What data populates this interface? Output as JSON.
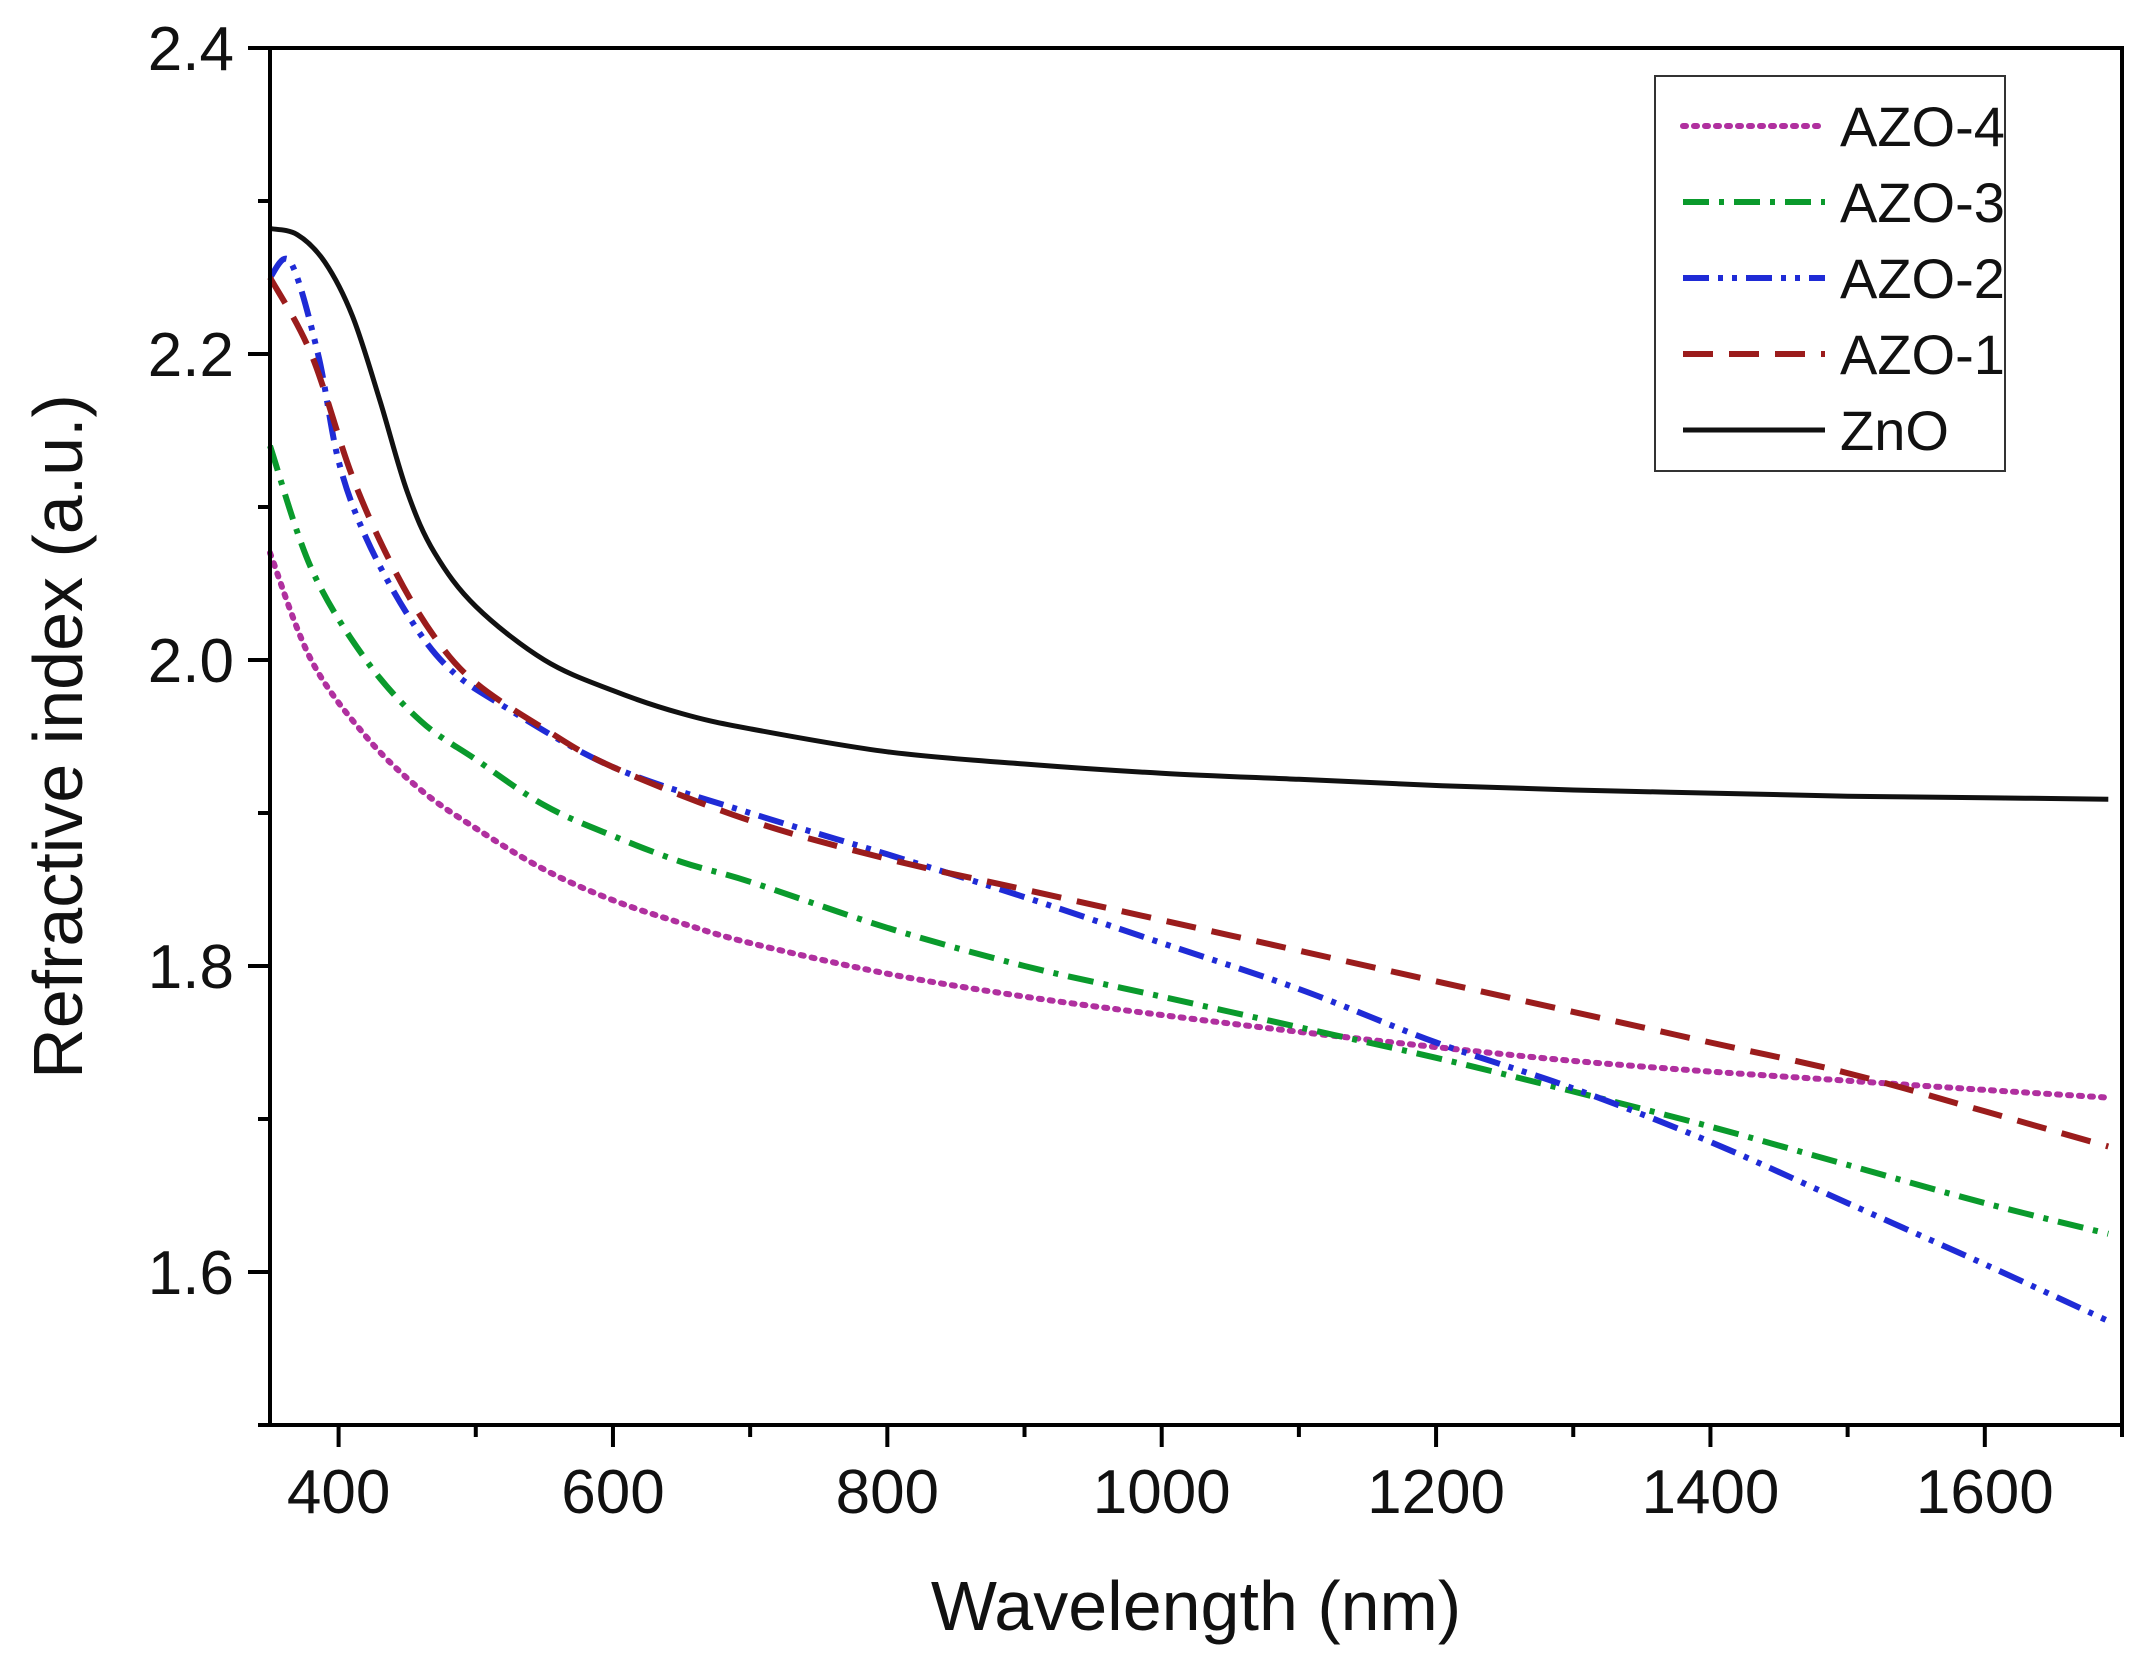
{
  "chart_data": {
    "type": "line",
    "title": "",
    "xlabel": "Wavelength (nm)",
    "ylabel": "Refractive index (a.u.)",
    "xlim": [
      350,
      1700
    ],
    "ylim": [
      1.5,
      2.4
    ],
    "xticks": [
      400,
      600,
      800,
      1000,
      1200,
      1400,
      1600
    ],
    "xtick_labels": [
      "400",
      "600",
      "800",
      "1000",
      "1200",
      "1400",
      "1600"
    ],
    "yticks": [
      1.6,
      1.8,
      2.0,
      2.2,
      2.4
    ],
    "ytick_labels": [
      "1.6",
      "1.8",
      "2.0",
      "2.2",
      "2.4"
    ],
    "grid": false,
    "legend_position": "top-right",
    "series": [
      {
        "name": "AZO-4",
        "color": "#b0309f",
        "dash": "dotted",
        "x": [
          350,
          380,
          420,
          460,
          500,
          550,
          600,
          650,
          700,
          800,
          900,
          1000,
          1100,
          1200,
          1300,
          1400,
          1500,
          1600,
          1690
        ],
        "y": [
          2.07,
          2.0,
          1.95,
          1.915,
          1.89,
          1.863,
          1.843,
          1.828,
          1.815,
          1.795,
          1.78,
          1.768,
          1.757,
          1.747,
          1.738,
          1.731,
          1.725,
          1.719,
          1.714
        ]
      },
      {
        "name": "AZO-3",
        "color": "#0a9a2c",
        "dash": "dashdot",
        "x": [
          350,
          380,
          420,
          460,
          500,
          550,
          600,
          650,
          700,
          800,
          900,
          1000,
          1100,
          1200,
          1300,
          1400,
          1500,
          1600,
          1690
        ],
        "y": [
          2.14,
          2.06,
          2.0,
          1.96,
          1.935,
          1.905,
          1.885,
          1.868,
          1.855,
          1.825,
          1.8,
          1.78,
          1.76,
          1.74,
          1.718,
          1.695,
          1.67,
          1.645,
          1.625
        ]
      },
      {
        "name": "AZO-2",
        "color": "#1f2bd6",
        "dash": "dashdotdot",
        "x": [
          350,
          365,
          385,
          400,
          420,
          450,
          480,
          520,
          600,
          700,
          800,
          900,
          1000,
          1100,
          1200,
          1300,
          1400,
          1500,
          1600,
          1690
        ],
        "y": [
          2.25,
          2.26,
          2.2,
          2.13,
          2.08,
          2.03,
          1.995,
          1.97,
          1.93,
          1.9,
          1.873,
          1.845,
          1.815,
          1.785,
          1.75,
          1.72,
          1.685,
          1.645,
          1.605,
          1.568
        ]
      },
      {
        "name": "AZO-1",
        "color": "#9b1c1c",
        "dash": "dashed",
        "x": [
          350,
          380,
          410,
          440,
          470,
          500,
          550,
          600,
          700,
          800,
          900,
          1000,
          1100,
          1200,
          1300,
          1400,
          1500,
          1600,
          1690
        ],
        "y": [
          2.25,
          2.2,
          2.12,
          2.06,
          2.015,
          1.985,
          1.955,
          1.93,
          1.895,
          1.87,
          1.85,
          1.83,
          1.81,
          1.79,
          1.77,
          1.75,
          1.73,
          1.705,
          1.682
        ]
      },
      {
        "name": "ZnO",
        "color": "#111111",
        "dash": "solid",
        "x": [
          350,
          370,
          390,
          410,
          430,
          450,
          470,
          500,
          550,
          600,
          650,
          700,
          800,
          900,
          1000,
          1100,
          1200,
          1300,
          1400,
          1500,
          1600,
          1690
        ],
        "y": [
          2.282,
          2.278,
          2.26,
          2.225,
          2.17,
          2.11,
          2.07,
          2.035,
          2.0,
          1.98,
          1.965,
          1.955,
          1.94,
          1.932,
          1.926,
          1.922,
          1.918,
          1.915,
          1.913,
          1.911,
          1.91,
          1.909
        ]
      }
    ]
  }
}
